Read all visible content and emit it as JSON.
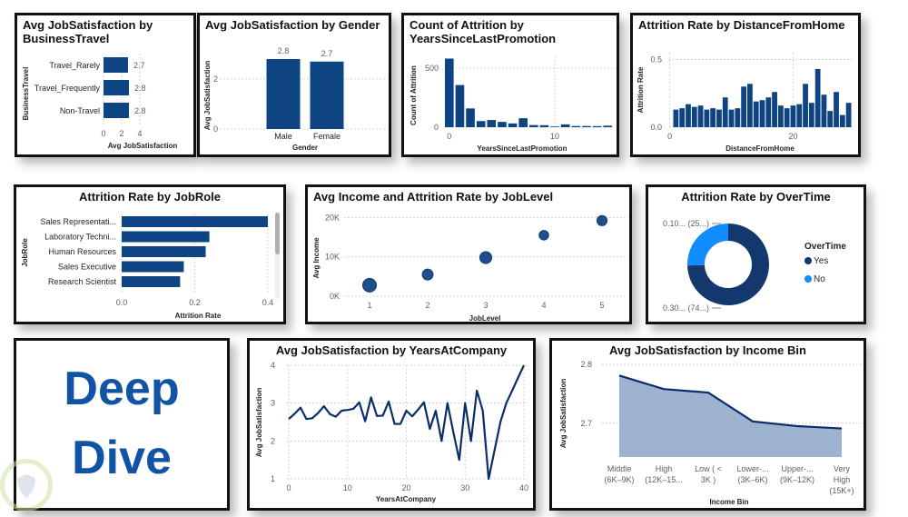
{
  "dashboard": {
    "deep_dive_line1": "Deep",
    "deep_dive_line2": "Dive",
    "colors": {
      "primary": "#0f4482",
      "line": "#0b2e6b",
      "light_blue": "#118dff",
      "area_fill": "#9db3cf",
      "title_text": "#1153a4"
    }
  },
  "chart_data": [
    {
      "id": "business_travel",
      "type": "bar",
      "orientation": "horizontal",
      "title": "Avg JobSatisfaction by BusinessTravel",
      "categories": [
        "Travel_Rarely",
        "Travel_Frequently",
        "Non-Travel"
      ],
      "values": [
        2.7,
        2.8,
        2.8
      ],
      "data_labels": [
        "2.7",
        "2.8",
        "2.8"
      ],
      "xlabel": "Avg JobSatisfaction",
      "ylabel": "BusinessTravel",
      "xlim": [
        0,
        4
      ],
      "xticks": [
        0,
        2,
        4
      ],
      "grid": true
    },
    {
      "id": "gender",
      "type": "bar",
      "title": "Avg JobSatisfaction by Gender",
      "categories": [
        "Male",
        "Female"
      ],
      "values": [
        2.8,
        2.7
      ],
      "data_labels": [
        "2.8",
        "2.7"
      ],
      "xlabel": "Gender",
      "ylabel": "Avg JobSatisfaction",
      "ylim": [
        0,
        3.2
      ],
      "yticks": [
        0,
        2
      ],
      "grid": true
    },
    {
      "id": "promotion",
      "type": "bar",
      "title": "Count of Attrition by YearsSinceLastPromotion",
      "x": [
        0,
        1,
        2,
        3,
        4,
        5,
        6,
        7,
        8,
        9,
        10,
        11,
        12,
        13,
        14,
        15
      ],
      "values": [
        581,
        357,
        159,
        52,
        61,
        45,
        32,
        76,
        18,
        17,
        6,
        24,
        10,
        10,
        9,
        13
      ],
      "xlabel": "YearsSinceLastPromotion",
      "ylabel": "Count of Attrition",
      "ylim": [
        0,
        600
      ],
      "yticks": [
        0,
        500
      ],
      "xticks": [
        0,
        10
      ],
      "grid": true
    },
    {
      "id": "distance",
      "type": "bar",
      "title": "Attrition Rate by DistanceFromHome",
      "x": [
        1,
        2,
        3,
        4,
        5,
        6,
        7,
        8,
        9,
        10,
        11,
        12,
        13,
        14,
        15,
        16,
        17,
        18,
        19,
        20,
        21,
        22,
        23,
        24,
        25,
        26,
        27,
        28,
        29
      ],
      "values": [
        0.13,
        0.14,
        0.17,
        0.15,
        0.16,
        0.13,
        0.14,
        0.13,
        0.22,
        0.13,
        0.14,
        0.3,
        0.32,
        0.19,
        0.2,
        0.22,
        0.26,
        0.16,
        0.14,
        0.16,
        0.17,
        0.32,
        0.18,
        0.43,
        0.24,
        0.12,
        0.26,
        0.09,
        0.18
      ],
      "xlabel": "DistanceFromHome",
      "ylabel": "Attrition Rate",
      "ylim": [
        0,
        0.55
      ],
      "yticks": [
        0.0,
        0.5
      ],
      "ytick_labels": [
        "0.0",
        "0.5"
      ],
      "xticks": [
        0,
        20
      ],
      "grid": true
    },
    {
      "id": "jobrole",
      "type": "bar",
      "orientation": "horizontal",
      "title": "Attrition Rate by JobRole",
      "categories": [
        "Sales Representati...",
        "Laboratory Techni...",
        "Human Resources",
        "Sales Executive",
        "Research Scientist"
      ],
      "values": [
        0.4,
        0.24,
        0.23,
        0.17,
        0.16
      ],
      "xlabel": "Attrition Rate",
      "ylabel": "JobRole",
      "xlim": [
        0,
        0.42
      ],
      "xticks": [
        0.0,
        0.2,
        0.4
      ],
      "xtick_labels": [
        "0.0",
        "0.2",
        "0.4"
      ],
      "grid": true,
      "scrollable": true
    },
    {
      "id": "joblevel",
      "type": "scatter",
      "title": "Avg Income and Attrition Rate by JobLevel",
      "x": [
        1,
        2,
        3,
        4,
        5
      ],
      "y": [
        2800,
        5500,
        9800,
        15500,
        19200
      ],
      "size_values": [
        0.26,
        0.1,
        0.15,
        0.05,
        0.07
      ],
      "size_meaning": "Attrition Rate",
      "xlabel": "JobLevel",
      "ylabel": "Avg Income",
      "ylim": [
        0,
        21000
      ],
      "yticks": [
        0,
        10000,
        20000
      ],
      "ytick_labels": [
        "0K",
        "10K",
        "20K"
      ],
      "xticks": [
        1,
        2,
        3,
        4,
        5
      ],
      "grid": true
    },
    {
      "id": "overtime",
      "type": "pie",
      "donut": true,
      "title": "Attrition Rate by OverTime",
      "legend_title": "OverTime",
      "legend_position": "right",
      "labels": [
        "Yes",
        "No"
      ],
      "values": [
        0.305,
        0.104
      ],
      "percentages": [
        74.6,
        25.4
      ],
      "data_labels": [
        "0.30... (74...)",
        "0.10... (25...)"
      ],
      "colors": [
        "#12386e",
        "#118dff"
      ]
    },
    {
      "id": "years_at_company",
      "type": "line",
      "title": "Avg JobSatisfaction by YearsAtCompany",
      "x": [
        0,
        1,
        2,
        3,
        4,
        5,
        6,
        7,
        8,
        9,
        10,
        11,
        12,
        13,
        14,
        15,
        16,
        17,
        18,
        19,
        20,
        21,
        22,
        23,
        24,
        25,
        26,
        27,
        28,
        29,
        30,
        31,
        32,
        33,
        34,
        35,
        36,
        37,
        38,
        39,
        40
      ],
      "values": [
        2.58,
        2.72,
        2.88,
        2.58,
        2.6,
        2.74,
        2.92,
        2.71,
        2.64,
        2.8,
        2.82,
        2.85,
        3.02,
        2.52,
        3.15,
        2.66,
        2.67,
        3.04,
        2.45,
        2.45,
        2.8,
        2.65,
        2.83,
        3.02,
        2.32,
        2.8,
        2.0,
        3.0,
        2.23,
        1.5,
        3.0,
        2.0,
        3.33,
        2.8,
        1.0,
        1.75,
        2.5,
        3.0,
        3.33,
        3.67,
        4.0
      ],
      "xlabel": "YearsAtCompany",
      "ylabel": "Avg JobSatisfaction",
      "ylim": [
        1,
        4
      ],
      "yticks": [
        1,
        2,
        3,
        4
      ],
      "xticks": [
        0,
        10,
        20,
        30,
        40
      ],
      "grid": true
    },
    {
      "id": "income_bin",
      "type": "area",
      "title": "Avg JobSatisfaction by Income Bin",
      "categories": [
        [
          "Middle",
          "(6K–9K)"
        ],
        [
          "High",
          "(12K–15..."
        ],
        [
          "Low ( <",
          "3K )"
        ],
        [
          "Lower-...",
          "(3K–6K)"
        ],
        [
          "Upper-...",
          "(9K–12K)"
        ],
        [
          "Very",
          "High",
          "(15K+)"
        ]
      ],
      "values": [
        2.781,
        2.758,
        2.752,
        2.703,
        2.695,
        2.691
      ],
      "xlabel": "Income Bin",
      "ylabel": "Avg JobSatisfaction",
      "ylim": [
        2.65,
        2.8
      ],
      "yticks": [
        2.7,
        2.8
      ],
      "ytick_labels": [
        "2.7",
        "2.8"
      ],
      "grid": true
    }
  ]
}
